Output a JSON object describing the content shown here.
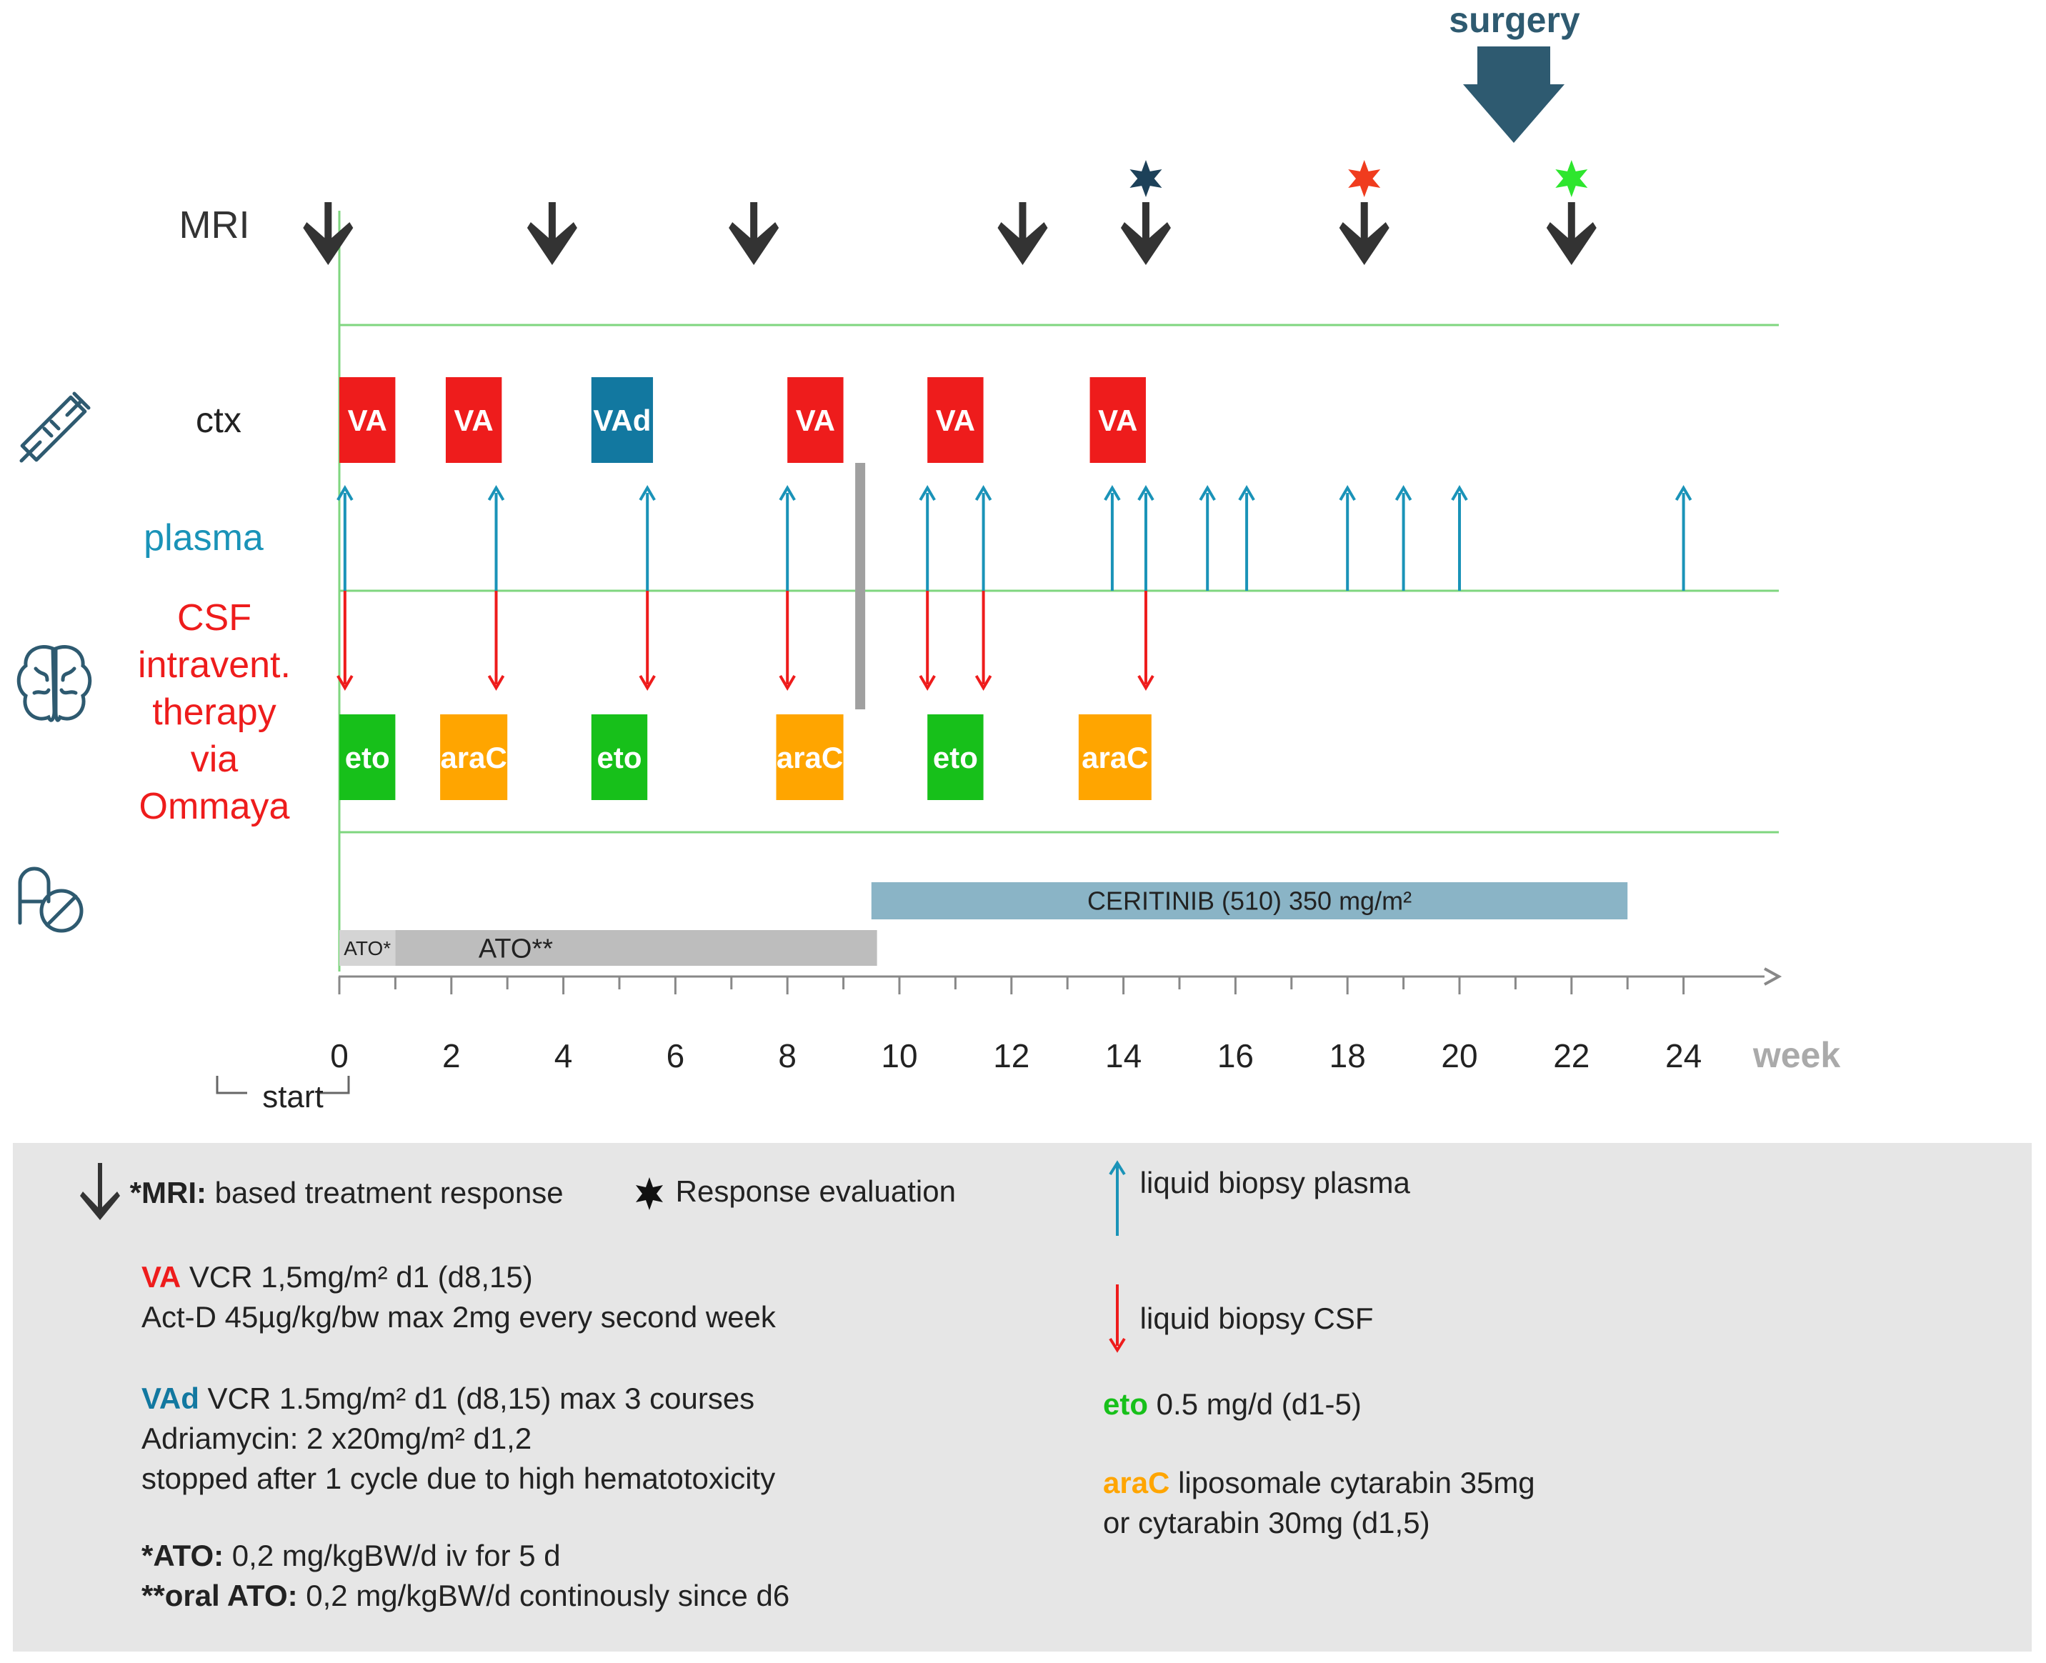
{
  "colors": {
    "va": "#ee1c1c",
    "vad": "#1278a0",
    "eto": "#17c01a",
    "arac": "#ffa500",
    "plasma": "#1a93b8",
    "csf": "#ee1c1c",
    "green_line": "#7fd67f",
    "mri_arrow": "#333333",
    "surgery": "#2e5a70",
    "ceritinib": "#8ab4c6",
    "ato": "#bdbdbd",
    "star_dark": "#1d4159",
    "star_red": "#f03c1e",
    "star_green": "#2ee62e",
    "axis": "#888888",
    "legend_bg": "#e6e6e6"
  },
  "surgery": {
    "label": "surgery",
    "week": 20.8
  },
  "rows": {
    "mri": "MRI",
    "ctx": "ctx",
    "plasma": "plasma",
    "csf_lines": [
      "CSF",
      "intravent.",
      "therapy",
      "via",
      "Ommaya"
    ]
  },
  "icons": {
    "ctx": "syringe-icon",
    "csf": "brain-icon",
    "oral": "pill-icon"
  },
  "mri_weeks": [
    -0.2,
    3.8,
    7.4,
    12.2,
    14.4,
    18.3,
    22
  ],
  "stars": [
    {
      "week": 14.4,
      "color": "#1d4159"
    },
    {
      "week": 18.3,
      "color": "#f03c1e"
    },
    {
      "week": 22,
      "color": "#2ee62e"
    }
  ],
  "ctx_blocks": [
    {
      "label": "VA",
      "start": 0,
      "end": 1,
      "color": "#ee1c1c"
    },
    {
      "label": "VA",
      "start": 1.9,
      "end": 2.9,
      "color": "#ee1c1c"
    },
    {
      "label": "VAd",
      "start": 4.5,
      "end": 5.6,
      "color": "#1278a0"
    },
    {
      "label": "VA",
      "start": 8,
      "end": 9,
      "color": "#ee1c1c"
    },
    {
      "label": "VA",
      "start": 10.5,
      "end": 11.5,
      "color": "#ee1c1c"
    },
    {
      "label": "VA",
      "start": 13.4,
      "end": 14.4,
      "color": "#ee1c1c"
    }
  ],
  "csf_blocks": [
    {
      "label": "eto",
      "start": 0,
      "end": 1,
      "color": "#17c01a"
    },
    {
      "label": "araC",
      "start": 1.8,
      "end": 3,
      "color": "#ffa500"
    },
    {
      "label": "eto",
      "start": 4.5,
      "end": 5.5,
      "color": "#17c01a"
    },
    {
      "label": "araC",
      "start": 7.8,
      "end": 9,
      "color": "#ffa500"
    },
    {
      "label": "eto",
      "start": 10.5,
      "end": 11.5,
      "color": "#17c01a"
    },
    {
      "label": "araC",
      "start": 13.2,
      "end": 14.5,
      "color": "#ffa500"
    }
  ],
  "plasma_weeks": [
    0.1,
    2.8,
    5.5,
    8,
    10.5,
    11.5,
    13.8,
    14.4,
    15.5,
    16.2,
    18,
    19,
    20,
    24
  ],
  "csf_weeks": [
    0.1,
    2.8,
    5.5,
    8,
    10.5,
    11.5,
    14.4
  ],
  "separator_week": 9.3,
  "ceritinib": {
    "label": "CERITINIB (510)  350 mg/m²",
    "start": 9.5,
    "end": 23
  },
  "ato_short": {
    "label": "ATO*",
    "start": 0,
    "end": 1
  },
  "ato_long": {
    "label": "ATO**",
    "start": 1,
    "end": 9.6
  },
  "axis": {
    "ticks": [
      "0",
      "2",
      "4",
      "6",
      "8",
      "10",
      "12",
      "14",
      "16",
      "18",
      "20",
      "22",
      "24"
    ],
    "unit": "week",
    "start_label": "start"
  },
  "legend": {
    "mri_bold": "*MRI:",
    "mri_text": " based treatment response",
    "response": "Response evaluation",
    "plasma": "liquid biopsy plasma",
    "csf": "liquid biopsy CSF",
    "va_name": "VA",
    "va_line1": " VCR 1,5mg/m² d1 (d8,15)",
    "va_line2": "Act-D 45µg/kg/bw max 2mg every second week",
    "vad_name": "VAd",
    "vad_line1": " VCR 1.5mg/m² d1 (d8,15) max 3 courses",
    "vad_line2": "Adriamycin: 2 x20mg/m² d1,2",
    "vad_line3": "stopped after 1 cycle due to high hematotoxicity",
    "ato1_bold": "*ATO:",
    "ato1_text": " 0,2 mg/kgBW/d iv for 5 d",
    "ato2_bold": "**oral ATO:",
    "ato2_text": " 0,2 mg/kgBW/d continously since d6",
    "eto_name": "eto",
    "eto_text": " 0.5 mg/d (d1-5)",
    "arac_name": "araC",
    "arac_line1": " liposomale cytarabin 35mg",
    "arac_line2": "or cytarabin 30mg (d1,5)"
  }
}
